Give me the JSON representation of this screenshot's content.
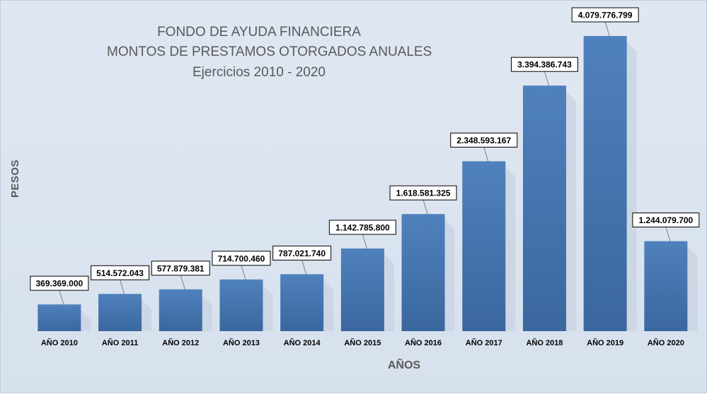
{
  "chart_data": {
    "type": "bar",
    "title": [
      "FONDO DE AYUDA FINANCIERA",
      "MONTOS DE PRESTAMOS OTORGADOS ANUALES",
      "Ejercicios 2010 - 2020"
    ],
    "xlabel": "AÑOS",
    "ylabel": "PESOS",
    "categories": [
      "AÑO 2010",
      "AÑO 2011",
      "AÑO 2012",
      "AÑO 2013",
      "AÑO 2014",
      "AÑO 2015",
      "AÑO 2016",
      "AÑO 2017",
      "AÑO 2018",
      "AÑO 2019",
      "AÑO 2020"
    ],
    "values": [
      369369000,
      514572043,
      577879381,
      714700460,
      787021740,
      1142785800,
      1618581325,
      2348593167,
      3394386743,
      4079776799,
      1244079700
    ],
    "data_labels": [
      "369.369.000",
      "514.572.043",
      "577.879.381",
      "714.700.460",
      "787.021.740",
      "1.142.785.800",
      "1.618.581.325",
      "2.348.593.167",
      "3.394.386.743",
      "4.079.776.799",
      "1.244.079.700"
    ],
    "ylim": [
      0,
      4400000000
    ],
    "grid": false,
    "legend": "none",
    "colors": {
      "bar_top": "#4f81bd",
      "bar_bottom": "#3a679e",
      "label_border": "#000000",
      "label_bg": "#ffffff"
    }
  }
}
